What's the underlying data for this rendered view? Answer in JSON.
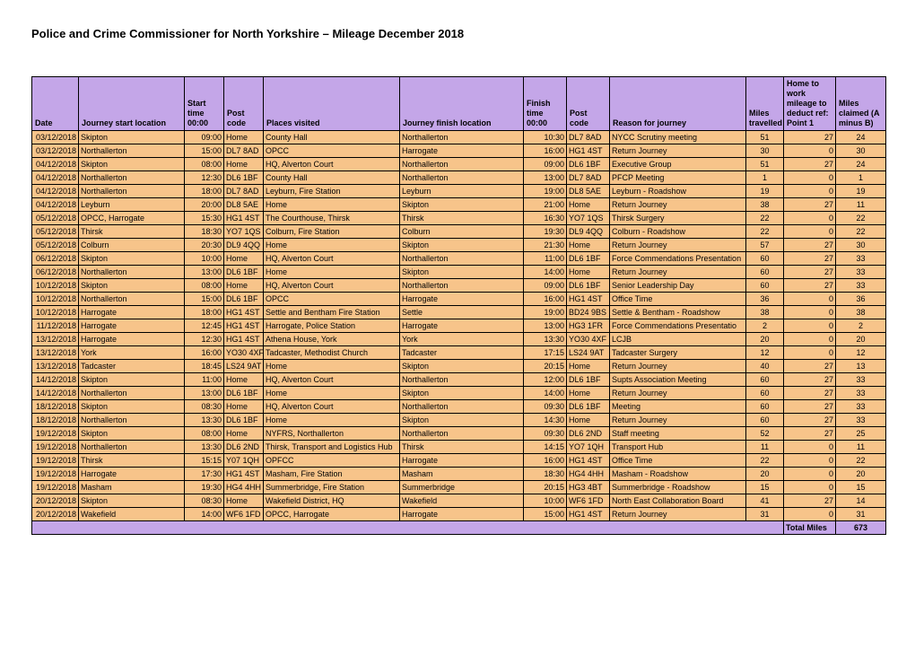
{
  "title": "Police and Crime Commissioner for North Yorkshire – Mileage December 2018",
  "headers": {
    "date": "Date",
    "startLoc": "Journey start location",
    "startTime": "Start time 00:00",
    "postCode1": "Post code",
    "places": "Places visited",
    "finishLoc": "Journey finish location",
    "finishTime": "Finish time 00:00",
    "postCode2": "Post code",
    "reason": "Reason for journey",
    "miles": "Miles travelled",
    "deduct": "Home to work mileage to deduct ref: Point 1",
    "claimed": "Miles claimed (A minus B)"
  },
  "rows": [
    {
      "date": "03/12/2018",
      "startLoc": "Skipton",
      "startTime": "09:00",
      "pc1": "Home",
      "places": "County Hall",
      "finLoc": "Northallerton",
      "finTime": "10:30",
      "pc2": "DL7 8AD",
      "reason": "NYCC Scrutiny meeting",
      "miles": "51",
      "deduct": "27",
      "claim": "24"
    },
    {
      "date": "03/12/2018",
      "startLoc": "Northallerton",
      "startTime": "15:00",
      "pc1": "DL7 8AD",
      "places": "OPCC",
      "finLoc": "Harrogate",
      "finTime": "16:00",
      "pc2": "HG1 4ST",
      "reason": "Return Journey",
      "miles": "30",
      "deduct": "0",
      "claim": "30"
    },
    {
      "date": "04/12/2018",
      "startLoc": "Skipton",
      "startTime": "08:00",
      "pc1": "Home",
      "places": "HQ, Alverton Court",
      "finLoc": "Northallerton",
      "finTime": "09:00",
      "pc2": "DL6 1BF",
      "reason": "Executive Group",
      "miles": "51",
      "deduct": "27",
      "claim": "24"
    },
    {
      "date": "04/12/2018",
      "startLoc": "Northallerton",
      "startTime": "12:30",
      "pc1": "DL6 1BF",
      "places": "County Hall",
      "finLoc": "Northallerton",
      "finTime": "13:00",
      "pc2": "DL7 8AD",
      "reason": "PFCP Meeting",
      "miles": "1",
      "deduct": "0",
      "claim": "1"
    },
    {
      "date": "04/12/2018",
      "startLoc": "Northallerton",
      "startTime": "18:00",
      "pc1": "DL7 8AD",
      "places": "Leyburn, Fire Station",
      "finLoc": "Leyburn",
      "finTime": "19:00",
      "pc2": "DL8 5AE",
      "reason": "Leyburn - Roadshow",
      "miles": "19",
      "deduct": "0",
      "claim": "19"
    },
    {
      "date": "04/12/2018",
      "startLoc": "Leyburn",
      "startTime": "20:00",
      "pc1": "DL8 5AE",
      "places": "Home",
      "finLoc": "Skipton",
      "finTime": "21:00",
      "pc2": "Home",
      "reason": "Return Journey",
      "miles": "38",
      "deduct": "27",
      "claim": "11"
    },
    {
      "date": "05/12/2018",
      "startLoc": "OPCC, Harrogate",
      "startTime": "15:30",
      "pc1": "HG1 4ST",
      "places": "The Courthouse, Thirsk",
      "finLoc": "Thirsk",
      "finTime": "16:30",
      "pc2": "YO7 1QS",
      "reason": "Thirsk Surgery",
      "miles": "22",
      "deduct": "0",
      "claim": "22"
    },
    {
      "date": "05/12/2018",
      "startLoc": "Thirsk",
      "startTime": "18:30",
      "pc1": "YO7 1QS",
      "places": "Colburn, Fire Station",
      "finLoc": "Colburn",
      "finTime": "19:30",
      "pc2": "DL9 4QQ",
      "reason": "Colburn - Roadshow",
      "miles": "22",
      "deduct": "0",
      "claim": "22"
    },
    {
      "date": "05/12/2018",
      "startLoc": "Colburn",
      "startTime": "20:30",
      "pc1": "DL9 4QQ",
      "places": "Home",
      "finLoc": "Skipton",
      "finTime": "21:30",
      "pc2": "Home",
      "reason": "Return Journey",
      "miles": "57",
      "deduct": "27",
      "claim": "30"
    },
    {
      "date": "06/12/2018",
      "startLoc": "Skipton",
      "startTime": "10:00",
      "pc1": "Home",
      "places": "HQ, Alverton Court",
      "finLoc": "Northallerton",
      "finTime": "11:00",
      "pc2": "DL6 1BF",
      "reason": "Force Commendations Presentation",
      "miles": "60",
      "deduct": "27",
      "claim": "33"
    },
    {
      "date": "06/12/2018",
      "startLoc": "Northallerton",
      "startTime": "13:00",
      "pc1": "DL6 1BF",
      "places": "Home",
      "finLoc": "Skipton",
      "finTime": "14:00",
      "pc2": "Home",
      "reason": "Return Journey",
      "miles": "60",
      "deduct": "27",
      "claim": "33"
    },
    {
      "date": "10/12/2018",
      "startLoc": "Skipton",
      "startTime": "08:00",
      "pc1": "Home",
      "places": "HQ, Alverton Court",
      "finLoc": "Northallerton",
      "finTime": "09:00",
      "pc2": "DL6 1BF",
      "reason": "Senior Leadership Day",
      "miles": "60",
      "deduct": "27",
      "claim": "33"
    },
    {
      "date": "10/12/2018",
      "startLoc": "Northallerton",
      "startTime": "15:00",
      "pc1": "DL6 1BF",
      "places": "OPCC",
      "finLoc": "Harrogate",
      "finTime": "16:00",
      "pc2": "HG1 4ST",
      "reason": "Office Time",
      "miles": "36",
      "deduct": "0",
      "claim": "36"
    },
    {
      "date": "10/12/2018",
      "startLoc": "Harrogate",
      "startTime": "18:00",
      "pc1": "HG1 4ST",
      "places": "Settle and Bentham Fire Station",
      "finLoc": "Settle",
      "finTime": "19:00",
      "pc2": "BD24 9BS",
      "reason": "Settle & Bentham - Roadshow",
      "miles": "38",
      "deduct": "0",
      "claim": "38"
    },
    {
      "date": "11/12/2018",
      "startLoc": "Harrogate",
      "startTime": "12:45",
      "pc1": "HG1 4ST",
      "places": "Harrogate, Police Station",
      "finLoc": "Harrogate",
      "finTime": "13:00",
      "pc2": "HG3 1FR",
      "reason": "Force Commendations Presentatio",
      "miles": "2",
      "deduct": "0",
      "claim": "2"
    },
    {
      "date": "13/12/2018",
      "startLoc": "Harrogate",
      "startTime": "12:30",
      "pc1": "HG1 4ST",
      "places": "Athena House, York",
      "finLoc": "York",
      "finTime": "13:30",
      "pc2": "YO30 4XF",
      "reason": "LCJB",
      "miles": "20",
      "deduct": "0",
      "claim": "20"
    },
    {
      "date": "13/12/2018",
      "startLoc": "York",
      "startTime": "16:00",
      "pc1": "YO30 4XF",
      "places": "Tadcaster, Methodist Church",
      "finLoc": "Tadcaster",
      "finTime": "17:15",
      "pc2": "LS24 9AT",
      "reason": "Tadcaster Surgery",
      "miles": "12",
      "deduct": "0",
      "claim": "12"
    },
    {
      "date": "13/12/2018",
      "startLoc": "Tadcaster",
      "startTime": "18:45",
      "pc1": "LS24 9AT",
      "places": "Home",
      "finLoc": "Skipton",
      "finTime": "20:15",
      "pc2": "Home",
      "reason": "Return Journey",
      "miles": "40",
      "deduct": "27",
      "claim": "13"
    },
    {
      "date": "14/12/2018",
      "startLoc": "Skipton",
      "startTime": "11:00",
      "pc1": "Home",
      "places": "HQ, Alverton Court",
      "finLoc": "Northallerton",
      "finTime": "12:00",
      "pc2": "DL6 1BF",
      "reason": "Supts Association Meeting",
      "miles": "60",
      "deduct": "27",
      "claim": "33"
    },
    {
      "date": "14/12/2018",
      "startLoc": "Northallerton",
      "startTime": "13:00",
      "pc1": "DL6 1BF",
      "places": "Home",
      "finLoc": "Skipton",
      "finTime": "14:00",
      "pc2": "Home",
      "reason": "Return Journey",
      "miles": "60",
      "deduct": "27",
      "claim": "33"
    },
    {
      "date": "18/12/2018",
      "startLoc": "Skipton",
      "startTime": "08:30",
      "pc1": "Home",
      "places": "HQ, Alverton Court",
      "finLoc": "Northallerton",
      "finTime": "09:30",
      "pc2": "DL6 1BF",
      "reason": "Meeting",
      "miles": "60",
      "deduct": "27",
      "claim": "33"
    },
    {
      "date": "18/12/2018",
      "startLoc": "Northallerton",
      "startTime": "13:30",
      "pc1": "DL6 1BF",
      "places": "Home",
      "finLoc": "Skipton",
      "finTime": "14:30",
      "pc2": "Home",
      "reason": "Return Journey",
      "miles": "60",
      "deduct": "27",
      "claim": "33"
    },
    {
      "date": "19/12/2018",
      "startLoc": "Skipton",
      "startTime": "08:00",
      "pc1": "Home",
      "places": "NYFRS, Northallerton",
      "finLoc": "Northallerton",
      "finTime": "09:30",
      "pc2": "DL6 2ND",
      "reason": "Staff meeting",
      "miles": "52",
      "deduct": "27",
      "claim": "25"
    },
    {
      "date": "19/12/2018",
      "startLoc": "Northallerton",
      "startTime": "13:30",
      "pc1": "DL6 2ND",
      "places": "Thirsk, Transport and Logistics Hub",
      "finLoc": "Thirsk",
      "finTime": "14:15",
      "pc2": "YO7 1QH",
      "reason": "Transport Hub",
      "miles": "11",
      "deduct": "0",
      "claim": "11"
    },
    {
      "date": "19/12/2018",
      "startLoc": "Thirsk",
      "startTime": "15:15",
      "pc1": "Y07 1QH",
      "places": "OPFCC",
      "finLoc": "Harrogate",
      "finTime": "16:00",
      "pc2": "HG1 4ST",
      "reason": "Office Time",
      "miles": "22",
      "deduct": "0",
      "claim": "22"
    },
    {
      "date": "19/12/2018",
      "startLoc": "Harrogate",
      "startTime": "17:30",
      "pc1": "HG1 4ST",
      "places": "Masham, Fire Station",
      "finLoc": "Masham",
      "finTime": "18:30",
      "pc2": "HG4 4HH",
      "reason": "Masham - Roadshow",
      "miles": "20",
      "deduct": "0",
      "claim": "20"
    },
    {
      "date": "19/12/2018",
      "startLoc": "Masham",
      "startTime": "19:30",
      "pc1": "HG4 4HH",
      "places": "Summerbridge, Fire Station",
      "finLoc": "Summerbridge",
      "finTime": "20:15",
      "pc2": "HG3 4BT",
      "reason": "Summerbridge - Roadshow",
      "miles": "15",
      "deduct": "0",
      "claim": "15"
    },
    {
      "date": "20/12/2018",
      "startLoc": "Skipton",
      "startTime": "08:30",
      "pc1": "Home",
      "places": "Wakefield District, HQ",
      "finLoc": "Wakefield",
      "finTime": "10:00",
      "pc2": "WF6 1FD",
      "reason": "North East Collaboration Board",
      "miles": "41",
      "deduct": "27",
      "claim": "14"
    },
    {
      "date": "20/12/2018",
      "startLoc": "Wakefield",
      "startTime": "14:00",
      "pc1": "WF6 1FD",
      "places": "OPCC, Harrogate",
      "finLoc": "Harrogate",
      "finTime": "15:00",
      "pc2": "HG1 4ST",
      "reason": "Return Journey",
      "miles": "31",
      "deduct": "0",
      "claim": "31"
    }
  ],
  "footer": {
    "label": "Total Miles",
    "value": "673"
  }
}
